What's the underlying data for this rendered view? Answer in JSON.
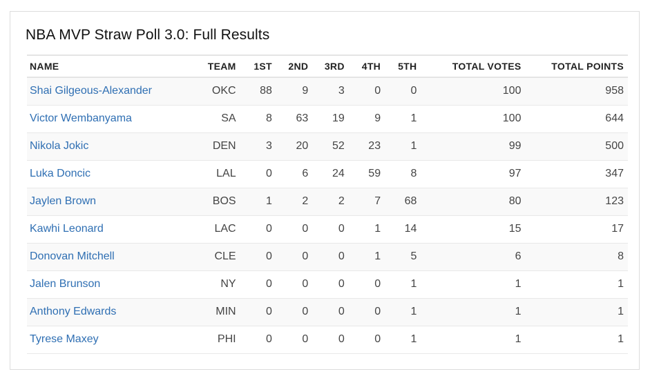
{
  "card": {
    "title": "NBA MVP Straw Poll 3.0: Full Results",
    "colors": {
      "link": "#2f6fb3",
      "stripe": "#f9f9f9",
      "border": "#dcdcdc"
    }
  },
  "table": {
    "headers": {
      "name": "NAME",
      "team": "TEAM",
      "first": "1ST",
      "second": "2ND",
      "third": "3RD",
      "fourth": "4TH",
      "fifth": "5TH",
      "total_votes": "TOTAL VOTES",
      "total_points": "TOTAL POINTS"
    },
    "rows": [
      {
        "name": "Shai Gilgeous-Alexander",
        "team": "OKC",
        "first": "88",
        "second": "9",
        "third": "3",
        "fourth": "0",
        "fifth": "0",
        "total_votes": "100",
        "total_points": "958"
      },
      {
        "name": "Victor Wembanyama",
        "team": "SA",
        "first": "8",
        "second": "63",
        "third": "19",
        "fourth": "9",
        "fifth": "1",
        "total_votes": "100",
        "total_points": "644"
      },
      {
        "name": "Nikola Jokic",
        "team": "DEN",
        "first": "3",
        "second": "20",
        "third": "52",
        "fourth": "23",
        "fifth": "1",
        "total_votes": "99",
        "total_points": "500"
      },
      {
        "name": "Luka Doncic",
        "team": "LAL",
        "first": "0",
        "second": "6",
        "third": "24",
        "fourth": "59",
        "fifth": "8",
        "total_votes": "97",
        "total_points": "347"
      },
      {
        "name": "Jaylen Brown",
        "team": "BOS",
        "first": "1",
        "second": "2",
        "third": "2",
        "fourth": "7",
        "fifth": "68",
        "total_votes": "80",
        "total_points": "123"
      },
      {
        "name": "Kawhi Leonard",
        "team": "LAC",
        "first": "0",
        "second": "0",
        "third": "0",
        "fourth": "1",
        "fifth": "14",
        "total_votes": "15",
        "total_points": "17"
      },
      {
        "name": "Donovan Mitchell",
        "team": "CLE",
        "first": "0",
        "second": "0",
        "third": "0",
        "fourth": "1",
        "fifth": "5",
        "total_votes": "6",
        "total_points": "8"
      },
      {
        "name": "Jalen Brunson",
        "team": "NY",
        "first": "0",
        "second": "0",
        "third": "0",
        "fourth": "0",
        "fifth": "1",
        "total_votes": "1",
        "total_points": "1"
      },
      {
        "name": "Anthony Edwards",
        "team": "MIN",
        "first": "0",
        "second": "0",
        "third": "0",
        "fourth": "0",
        "fifth": "1",
        "total_votes": "1",
        "total_points": "1"
      },
      {
        "name": "Tyrese Maxey",
        "team": "PHI",
        "first": "0",
        "second": "0",
        "third": "0",
        "fourth": "0",
        "fifth": "1",
        "total_votes": "1",
        "total_points": "1"
      }
    ]
  }
}
